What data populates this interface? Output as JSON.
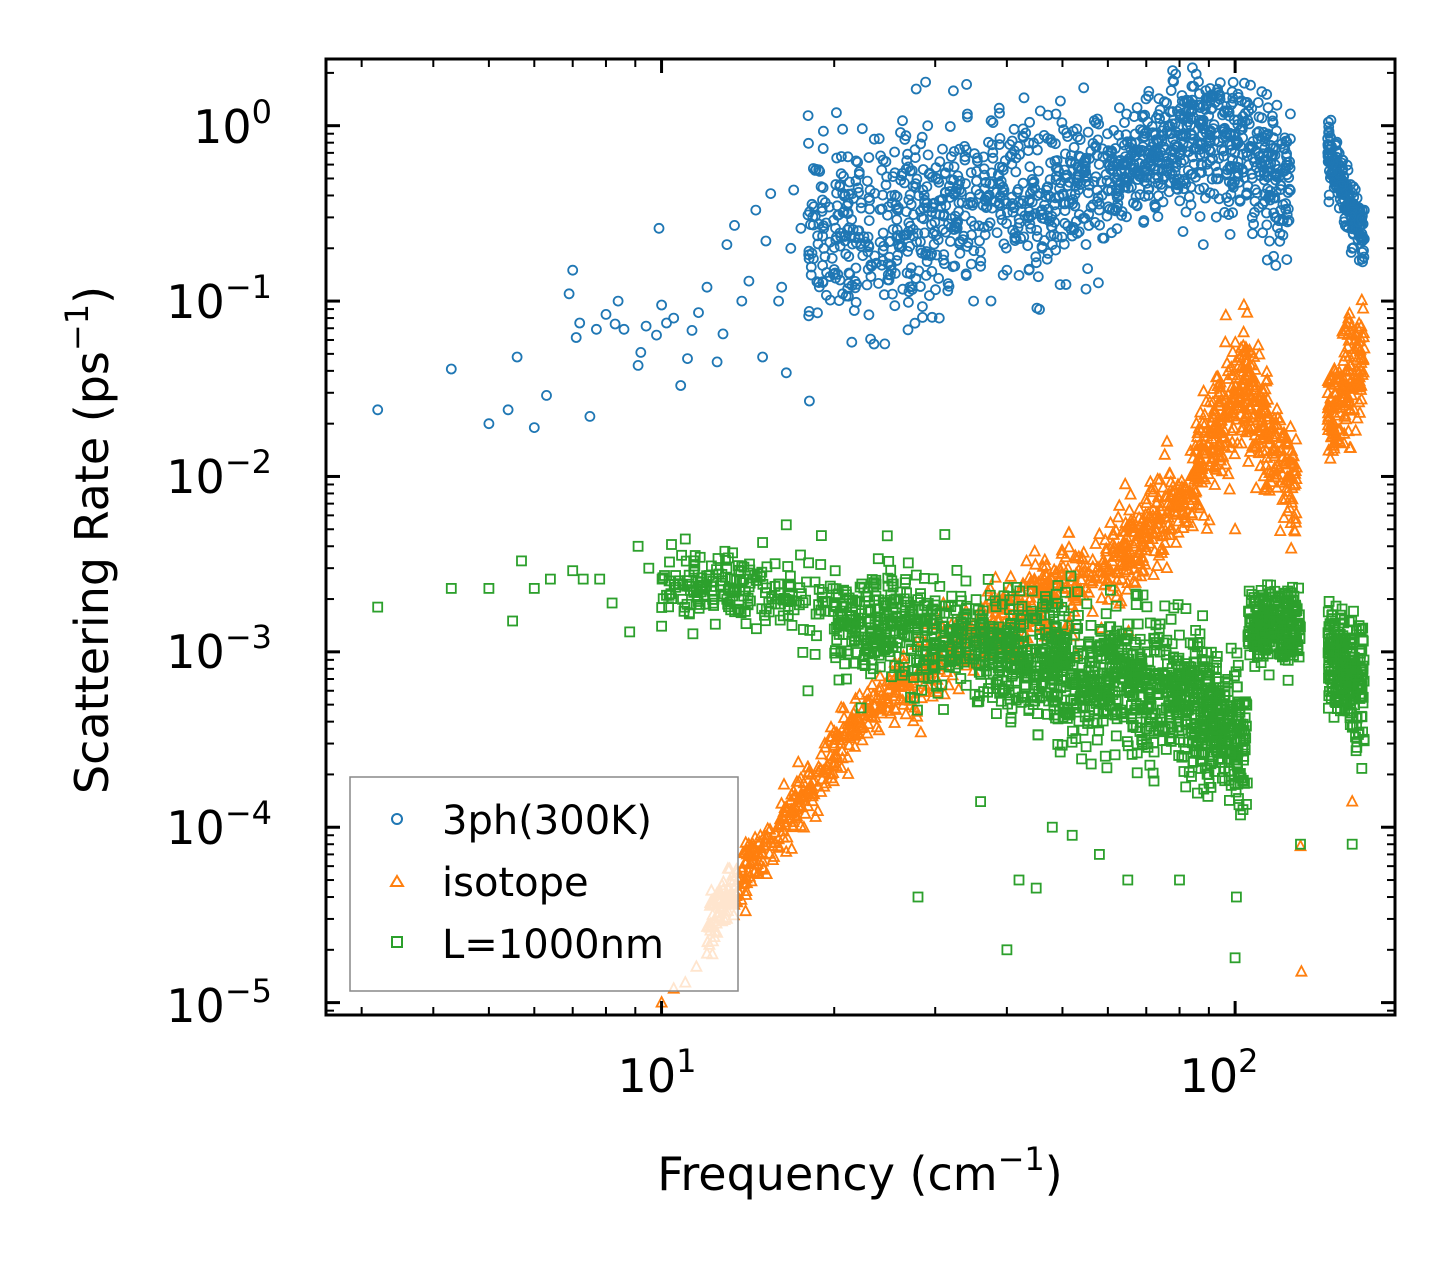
{
  "chart_data": {
    "type": "scatter",
    "title": "",
    "xlabel": "Frequency (cm",
    "xlabel_sup": "−1",
    "xlabel_end": ")",
    "ylabel": "Scattering Rate (ps",
    "ylabel_sup": "−1",
    "ylabel_end": ")",
    "xscale": "log",
    "yscale": "log",
    "xlim": [
      2.6,
      190
    ],
    "ylim": [
      8.5e-06,
      2.4
    ],
    "x_ticks": [
      {
        "value": 10,
        "base": "10",
        "exp": "1"
      },
      {
        "value": 100,
        "base": "10",
        "exp": "2"
      }
    ],
    "y_ticks": [
      {
        "value": 1,
        "base": "10",
        "exp": "0"
      },
      {
        "value": 0.1,
        "base": "10",
        "exp": "−1"
      },
      {
        "value": 0.01,
        "base": "10",
        "exp": "−2"
      },
      {
        "value": 0.001,
        "base": "10",
        "exp": "−3"
      },
      {
        "value": 0.0001,
        "base": "10",
        "exp": "−4"
      },
      {
        "value": 1e-05,
        "base": "10",
        "exp": "−5"
      }
    ],
    "legend_position": "lower-left",
    "series": [
      {
        "name": "3ph(300K)",
        "marker": "circle",
        "color": "#1f77b4",
        "points": [
          [
            3.2,
            0.024
          ],
          [
            4.3,
            0.041
          ],
          [
            5.0,
            0.02
          ],
          [
            5.4,
            0.024
          ],
          [
            5.6,
            0.048
          ],
          [
            6.0,
            0.019
          ],
          [
            6.3,
            0.029
          ],
          [
            6.9,
            0.11
          ],
          [
            7.0,
            0.15
          ],
          [
            7.1,
            0.062
          ],
          [
            7.2,
            0.075
          ],
          [
            7.5,
            0.022
          ],
          [
            7.7,
            0.069
          ],
          [
            8.0,
            0.084
          ],
          [
            8.3,
            0.074
          ],
          [
            8.4,
            0.1
          ],
          [
            8.6,
            0.069
          ],
          [
            9.1,
            0.043
          ],
          [
            9.4,
            0.072
          ],
          [
            9.8,
            0.064
          ],
          [
            10.0,
            0.095
          ],
          [
            10.2,
            0.075
          ],
          [
            10.5,
            0.08
          ],
          [
            10.8,
            0.033
          ],
          [
            11.1,
            0.047
          ],
          [
            11.3,
            0.068
          ],
          [
            11.6,
            0.086
          ],
          [
            12.0,
            0.12
          ],
          [
            12.5,
            0.045
          ],
          [
            12.8,
            0.065
          ],
          [
            13.0,
            0.21
          ],
          [
            13.4,
            0.27
          ],
          [
            13.8,
            0.1
          ],
          [
            14.2,
            0.13
          ],
          [
            14.6,
            0.33
          ],
          [
            15.0,
            0.048
          ],
          [
            15.2,
            0.22
          ],
          [
            15.5,
            0.41
          ],
          [
            16.0,
            0.1
          ],
          [
            16.2,
            0.12
          ],
          [
            16.5,
            0.039
          ],
          [
            16.8,
            0.2
          ],
          [
            17.0,
            0.43
          ],
          [
            17.5,
            0.26
          ],
          [
            18.0,
            0.31
          ],
          [
            18.4,
            0.57
          ],
          [
            9.9,
            0.26
          ],
          [
            9.2,
            0.051
          ],
          [
            24.5,
            0.057
          ],
          [
            28.5,
            0.093
          ],
          [
            30.5,
            0.08
          ],
          [
            35.0,
            0.1
          ],
          [
            40.0,
            0.15
          ],
          [
            42.0,
            0.14
          ],
          [
            48.0,
            0.21
          ],
          [
            88.0,
            0.21
          ],
          [
            98.0,
            0.24
          ],
          [
            118.0,
            0.3
          ],
          [
            160.0,
            0.2
          ],
          [
            99.0,
            0.64
          ],
          [
            60.0,
            0.43
          ],
          [
            55.0,
            0.52
          ]
        ],
        "clusters": [
          {
            "x": [
              18,
              30
            ],
            "y_center": [
              0.22,
              0.32
            ],
            "spread": 0.75,
            "count": 320
          },
          {
            "x": [
              30,
              60
            ],
            "y_center": [
              0.3,
              0.5
            ],
            "spread": 0.65,
            "count": 420
          },
          {
            "x": [
              60,
              92
            ],
            "y_center": [
              0.5,
              0.95
            ],
            "spread": 0.5,
            "count": 380
          },
          {
            "x": [
              92,
              125
            ],
            "y_center": [
              0.85,
              0.45
            ],
            "spread": 0.55,
            "count": 260
          },
          {
            "x": [
              145,
              168
            ],
            "y_center": [
              0.75,
              0.22
            ],
            "spread": 0.25,
            "count": 200
          }
        ]
      },
      {
        "name": "isotope",
        "marker": "triangle",
        "color": "#ff7f0e",
        "points": [
          [
            10.0,
            1e-05
          ],
          [
            10.5,
            1.2e-05
          ],
          [
            11.0,
            1.3e-05
          ],
          [
            11.5,
            1.6e-05
          ],
          [
            12.0,
            1.9e-05
          ],
          [
            12.5,
            2.5e-05
          ],
          [
            13.0,
            3e-05
          ],
          [
            13.5,
            3.8e-05
          ],
          [
            14.0,
            4.8e-05
          ],
          [
            14.5,
            5.5e-05
          ],
          [
            15.0,
            7e-05
          ],
          [
            15.5,
            8.5e-05
          ],
          [
            16.0,
            0.0001
          ],
          [
            16.5,
            0.00013
          ],
          [
            17.0,
            0.00016
          ],
          [
            17.5,
            0.00019
          ],
          [
            18.0,
            0.00022
          ],
          [
            19.0,
            0.00026
          ],
          [
            20.0,
            0.0003
          ],
          [
            21.0,
            0.00034
          ],
          [
            22.0,
            0.00038
          ],
          [
            130.0,
            7.8e-05
          ],
          [
            130.5,
            1.5e-05
          ],
          [
            160.0,
            0.00014
          ],
          [
            100.0,
            0.005
          ],
          [
            125.0,
            0.0011
          ]
        ],
        "clusters": [
          {
            "x": [
              12,
              22
            ],
            "y_center": [
              2.8e-05,
              0.00038
            ],
            "spread": 0.25,
            "count": 300
          },
          {
            "x": [
              22,
              40
            ],
            "y_center": [
              0.0004,
              0.0016
            ],
            "spread": 0.3,
            "count": 260
          },
          {
            "x": [
              40,
              60
            ],
            "y_center": [
              0.0016,
              0.003
            ],
            "spread": 0.35,
            "count": 220
          },
          {
            "x": [
              60,
              85
            ],
            "y_center": [
              0.003,
              0.009
            ],
            "spread": 0.4,
            "count": 240
          },
          {
            "x": [
              85,
              105
            ],
            "y_center": [
              0.01,
              0.04
            ],
            "spread": 0.45,
            "count": 220
          },
          {
            "x": [
              105,
              128
            ],
            "y_center": [
              0.03,
              0.008
            ],
            "spread": 0.5,
            "count": 200
          },
          {
            "x": [
              145,
              168
            ],
            "y_center": [
              0.02,
              0.05
            ],
            "spread": 0.45,
            "count": 180
          }
        ]
      },
      {
        "name": "L=1000nm",
        "marker": "square",
        "color": "#2ca02c",
        "points": [
          [
            3.2,
            0.0018
          ],
          [
            4.3,
            0.0023
          ],
          [
            5.0,
            0.0023
          ],
          [
            5.5,
            0.0015
          ],
          [
            5.7,
            0.0033
          ],
          [
            6.0,
            0.0023
          ],
          [
            6.4,
            0.0026
          ],
          [
            7.0,
            0.0029
          ],
          [
            7.3,
            0.0026
          ],
          [
            7.8,
            0.0026
          ],
          [
            8.2,
            0.0019
          ],
          [
            8.8,
            0.0013
          ],
          [
            9.1,
            0.004
          ],
          [
            9.5,
            0.003
          ],
          [
            10.0,
            0.0014
          ],
          [
            10.2,
            0.0021
          ],
          [
            11.0,
            0.0044
          ],
          [
            11.5,
            0.0022
          ],
          [
            12.0,
            0.0026
          ],
          [
            13.0,
            0.003
          ],
          [
            14.0,
            0.0017
          ],
          [
            15.0,
            0.0042
          ],
          [
            16.5,
            0.0053
          ],
          [
            18.0,
            0.0006
          ],
          [
            19.0,
            0.0046
          ],
          [
            21.0,
            0.0007
          ],
          [
            28.0,
            4e-05
          ],
          [
            36.0,
            0.00014
          ],
          [
            40.0,
            2e-05
          ],
          [
            42.0,
            5e-05
          ],
          [
            45.0,
            4.5e-05
          ],
          [
            48.0,
            0.0001
          ],
          [
            52.0,
            9e-05
          ],
          [
            58.0,
            7e-05
          ],
          [
            65.0,
            5e-05
          ],
          [
            80.0,
            5e-05
          ],
          [
            100.0,
            1.8e-05
          ],
          [
            100.5,
            4e-05
          ],
          [
            160.0,
            8e-05
          ],
          [
            130.0,
            8e-05
          ]
        ],
        "clusters": [
          {
            "x": [
              10,
              20
            ],
            "y_center": [
              0.0024,
              0.002
            ],
            "spread": 0.3,
            "count": 200
          },
          {
            "x": [
              20,
              40
            ],
            "y_center": [
              0.0016,
              0.001
            ],
            "spread": 0.45,
            "count": 480
          },
          {
            "x": [
              40,
              60
            ],
            "y_center": [
              0.001,
              0.0006
            ],
            "spread": 0.55,
            "count": 420
          },
          {
            "x": [
              60,
              85
            ],
            "y_center": [
              0.0008,
              0.0005
            ],
            "spread": 0.55,
            "count": 380
          },
          {
            "x": [
              85,
              105
            ],
            "y_center": [
              0.0005,
              0.0003
            ],
            "spread": 0.55,
            "count": 300
          },
          {
            "x": [
              105,
              130
            ],
            "y_center": [
              0.0014,
              0.0014
            ],
            "spread": 0.3,
            "count": 260
          },
          {
            "x": [
              145,
              168
            ],
            "y_center": [
              0.001,
              0.0006
            ],
            "spread": 0.45,
            "count": 260
          }
        ]
      }
    ]
  }
}
